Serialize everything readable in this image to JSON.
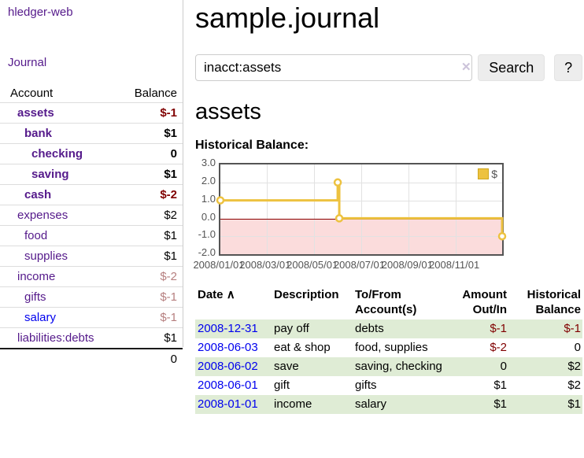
{
  "sidebar": {
    "app_title": "hledger-web",
    "journal_label": "Journal",
    "accounts": {
      "headers": {
        "account": "Account",
        "balance": "Balance"
      },
      "rows": [
        {
          "name": "assets",
          "indent": 1,
          "bold": true,
          "balance": "$-1",
          "neg": "strong"
        },
        {
          "name": "bank",
          "indent": 2,
          "bold": true,
          "balance": "$1"
        },
        {
          "name": "checking",
          "indent": 3,
          "bold": true,
          "balance": "0"
        },
        {
          "name": "saving",
          "indent": 3,
          "bold": true,
          "balance": "$1"
        },
        {
          "name": "cash",
          "indent": 2,
          "bold": true,
          "balance": "$-2",
          "neg": "strong"
        },
        {
          "name": "expenses",
          "indent": 1,
          "bold": false,
          "balance": "$2"
        },
        {
          "name": "food",
          "indent": 2,
          "bold": false,
          "balance": "$1"
        },
        {
          "name": "supplies",
          "indent": 2,
          "bold": false,
          "balance": "$1"
        },
        {
          "name": "income",
          "indent": 1,
          "bold": false,
          "balance": "$-2",
          "neg": "soft"
        },
        {
          "name": "gifts",
          "indent": 2,
          "bold": false,
          "balance": "$-1",
          "neg": "soft"
        },
        {
          "name": "salary",
          "indent": 2,
          "bold": false,
          "balance": "$-1",
          "neg": "soft",
          "link": "unvisited"
        },
        {
          "name": "liabilities:debts",
          "indent": 1,
          "bold": false,
          "balance": "$1"
        }
      ],
      "total": "0"
    }
  },
  "main": {
    "title": "sample.journal",
    "search": {
      "value": "inacct:assets",
      "clear_icon": "✕",
      "search_label": "Search",
      "help_label": "?"
    },
    "account_heading": "assets",
    "chart_label": "Historical Balance:"
  },
  "chart_data": {
    "type": "line",
    "title": "Historical Balance:",
    "x_range": [
      "2008/01/01",
      "2008/12/31"
    ],
    "ylim": [
      -2,
      3
    ],
    "y_ticks": [
      3,
      2,
      1,
      0,
      -1,
      -2
    ],
    "x_ticks": [
      "2008/01/01",
      "2008/03/01",
      "2008/05/01",
      "2008/07/01",
      "2008/09/01",
      "2008/11/01"
    ],
    "grid": true,
    "negative_shade": true,
    "negative_shade_color": "#fbdcdc",
    "zero_line_color": "#8b0000",
    "legend_position": "top-right",
    "series": [
      {
        "name": "$",
        "color": "#edc240",
        "step": true,
        "points": [
          [
            "2008-01-01",
            1
          ],
          [
            "2008-06-01",
            2
          ],
          [
            "2008-06-03",
            0
          ],
          [
            "2008-12-31",
            -1
          ]
        ]
      }
    ]
  },
  "register": {
    "headers": {
      "date": "Date",
      "sort_icon": "∧",
      "description": "Description",
      "accounts": "To/From Account(s)",
      "amount": "Amount Out/In",
      "balance": "Historical Balance"
    },
    "rows": [
      {
        "date": "2008-12-31",
        "description": "pay off",
        "accounts": "debts",
        "amount": "$-1",
        "amount_neg": true,
        "balance": "$-1",
        "balance_neg": true
      },
      {
        "date": "2008-06-03",
        "description": "eat & shop",
        "accounts": "food, supplies",
        "amount": "$-2",
        "amount_neg": true,
        "balance": "0",
        "balance_neg": false
      },
      {
        "date": "2008-06-02",
        "description": "save",
        "accounts": "saving, checking",
        "amount": "0",
        "amount_neg": false,
        "balance": "$2",
        "balance_neg": false
      },
      {
        "date": "2008-06-01",
        "description": "gift",
        "accounts": "gifts",
        "amount": "$1",
        "amount_neg": false,
        "balance": "$2",
        "balance_neg": false
      },
      {
        "date": "2008-01-01",
        "description": "income",
        "accounts": "salary",
        "amount": "$1",
        "amount_neg": false,
        "balance": "$1",
        "balance_neg": false
      }
    ]
  }
}
